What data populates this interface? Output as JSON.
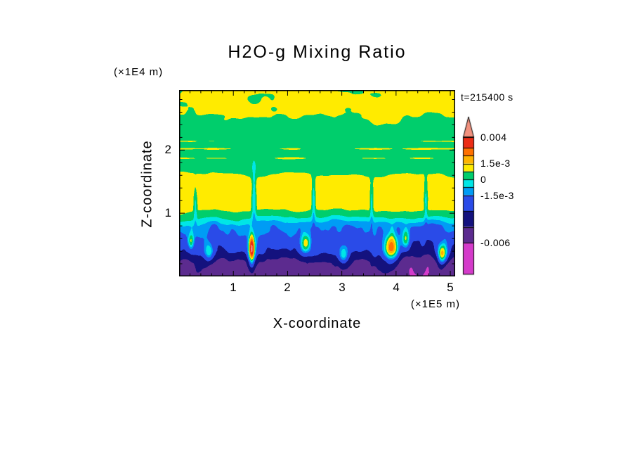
{
  "figure": {
    "title": "H2O-g Mixing Ratio",
    "time_label": "t=215400 s",
    "background": "#ffffff",
    "text_color": "#000000"
  },
  "axes": {
    "xlabel": "X-coordinate",
    "ylabel": "Z-coordinate",
    "x_unit": "(×1E5 m)",
    "y_unit": "(×1E4 m)",
    "xtick_labels": [
      "1",
      "2",
      "3",
      "4",
      "5"
    ],
    "ytick_labels": [
      "2",
      "1"
    ]
  },
  "colorbar": {
    "labels": [
      "0.004",
      "1.5e-3",
      "0",
      "-1.5e-3",
      "-0.006"
    ]
  },
  "chart_data": {
    "type": "heatmap",
    "title": "H2O-g Mixing Ratio",
    "xlabel": "X-coordinate",
    "ylabel": "Z-coordinate",
    "x_unit_scale": "(×1E5 m)",
    "y_unit_scale": "(×1E4 m)",
    "time_annotation": "t=215400 s",
    "xlim": [
      0,
      5.09
    ],
    "ylim": [
      0,
      2.95
    ],
    "xticks": [
      1,
      2,
      3,
      4,
      5
    ],
    "yticks": [
      1,
      2
    ],
    "minor_tick_step": 0.2,
    "levels": [
      -0.006,
      -0.0045,
      -0.003,
      -0.0015,
      -0.00075,
      0,
      0.00075,
      0.0015,
      0.00225,
      0.003,
      0.004
    ],
    "band_colors": [
      "#D43BCA",
      "#5C2B8F",
      "#14127E",
      "#2A4BE8",
      "#009CF5",
      "#00E6E6",
      "#00CE6C",
      "#FFEB00",
      "#FFB300",
      "#FF7000",
      "#EC2D16",
      "#F2917E"
    ],
    "colorbar_range": [
      -0.009,
      0.005
    ],
    "colorbar_tick_labels": [
      {
        "value": 0.004,
        "label": "0.004"
      },
      {
        "value": 0.0015,
        "label": "1.5e-3"
      },
      {
        "value": 0,
        "label": "0"
      },
      {
        "value": -0.0015,
        "label": "-1.5e-3"
      },
      {
        "value": -0.006,
        "label": "-0.006"
      }
    ],
    "field_model": {
      "seed": 11,
      "boundary_waviness": 0.07,
      "base_profile": [
        [
          0,
          -0.0053
        ],
        [
          0.22,
          -0.0049
        ],
        [
          0.4,
          -0.003
        ],
        [
          0.62,
          -0.0021
        ],
        [
          0.8,
          -0.0012
        ],
        [
          0.93,
          0.0002
        ],
        [
          1.06,
          0.00102
        ],
        [
          1.5,
          0.001
        ],
        [
          1.72,
          0.00042
        ],
        [
          2.4,
          0.00042
        ],
        [
          2.62,
          0.0009
        ],
        [
          2.95,
          0.00092
        ]
      ],
      "noise_amplitude": [
        [
          0,
          0.0011
        ],
        [
          0.3,
          0.0018
        ],
        [
          0.65,
          0.0018
        ],
        [
          0.88,
          0.0008
        ],
        [
          1.06,
          0.0003
        ],
        [
          1.6,
          0.0003
        ],
        [
          2.35,
          0.00042
        ],
        [
          2.6,
          0.0006
        ],
        [
          2.95,
          0.0006
        ]
      ],
      "streaks": [
        {
          "z": 2.02,
          "width": 0.025,
          "amp": 0.00055
        },
        {
          "z": 1.87,
          "width": 0.02,
          "amp": 0.0005
        },
        {
          "z": 2.14,
          "width": 0.018,
          "amp": 0.00042
        }
      ],
      "updraft_hotspots": [
        {
          "x": 0.55,
          "z": 0.38,
          "rx": 0.09,
          "rz": 0.16,
          "amp": 0.003
        },
        {
          "x": 1.34,
          "z": 0.42,
          "rx": 0.06,
          "rz": 0.26,
          "amp": 0.0066
        },
        {
          "x": 2.33,
          "z": 0.52,
          "rx": 0.1,
          "rz": 0.17,
          "amp": 0.0036
        },
        {
          "x": 3.03,
          "z": 0.33,
          "rx": 0.09,
          "rz": 0.15,
          "amp": 0.0032
        },
        {
          "x": 3.92,
          "z": 0.45,
          "rx": 0.13,
          "rz": 0.24,
          "amp": 0.006
        },
        {
          "x": 4.18,
          "z": 0.58,
          "rx": 0.07,
          "rz": 0.16,
          "amp": 0.0038
        },
        {
          "x": 4.86,
          "z": 0.35,
          "rx": 0.1,
          "rz": 0.18,
          "amp": 0.0054
        },
        {
          "x": 0.22,
          "z": 0.55,
          "rx": 0.05,
          "rz": 0.12,
          "amp": 0.0026
        }
      ],
      "cold_plumes": [
        {
          "x": 0.3,
          "z": 1.1,
          "rx": 0.03,
          "rz": 0.3,
          "amp": -0.0011
        },
        {
          "x": 1.38,
          "z": 1.25,
          "rx": 0.035,
          "rz": 0.45,
          "amp": -0.0016
        },
        {
          "x": 2.48,
          "z": 1.2,
          "rx": 0.03,
          "rz": 0.4,
          "amp": -0.0014
        },
        {
          "x": 3.55,
          "z": 1.15,
          "rx": 0.03,
          "rz": 0.35,
          "amp": -0.0013
        },
        {
          "x": 4.55,
          "z": 1.18,
          "rx": 0.028,
          "rz": 0.35,
          "amp": -0.0012
        }
      ]
    }
  }
}
